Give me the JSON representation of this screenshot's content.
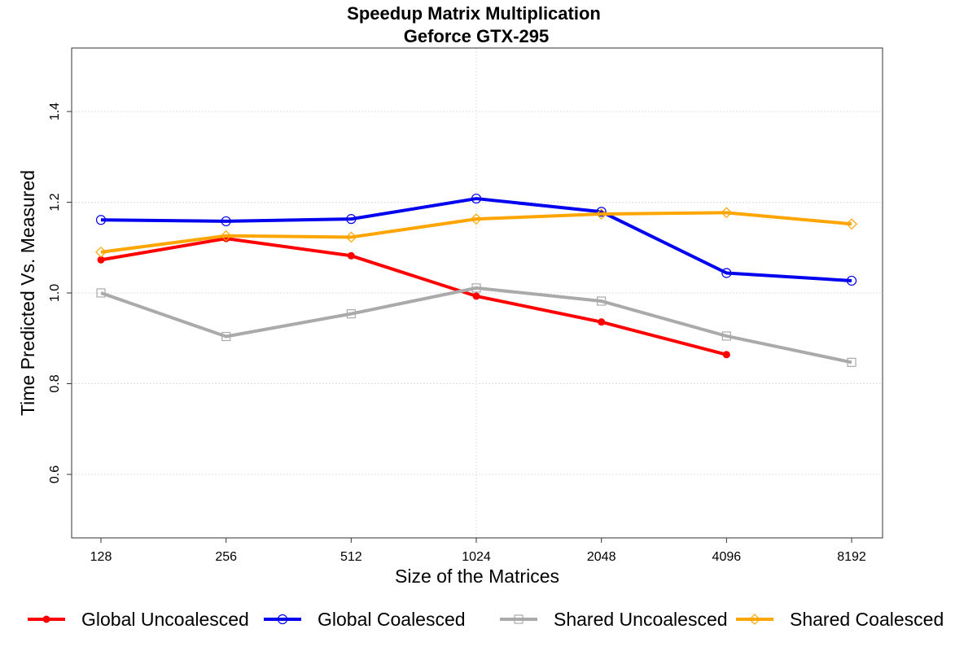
{
  "chart_data": {
    "type": "line",
    "title": "Speedup Matrix Multiplication",
    "subtitle": "Geforce GTX-295",
    "xlabel": "Size of the Matrices",
    "ylabel": "Time Predicted Vs. Measured",
    "categories": [
      "128",
      "256",
      "512",
      "1024",
      "2048",
      "4096",
      "8192"
    ],
    "yticks": [
      "0.6",
      "0.8",
      "1.0",
      "1.2",
      "1.4"
    ],
    "ylim": [
      0.46,
      1.54
    ],
    "grid": true,
    "legend_position": "bottom",
    "series": [
      {
        "name": "Global Uncoalesced",
        "color": "#ff0000",
        "marker": "filled-circle",
        "values": [
          1.073,
          1.12,
          1.082,
          0.993,
          0.936,
          0.864,
          null
        ]
      },
      {
        "name": "Global Coalesced",
        "color": "#0000ee",
        "marker": "open-circle",
        "values": [
          1.161,
          1.158,
          1.163,
          1.208,
          1.179,
          1.044,
          1.027
        ]
      },
      {
        "name": "Shared Uncoalesced",
        "color": "#aaaaaa",
        "marker": "open-square",
        "values": [
          1.0,
          0.904,
          0.954,
          1.011,
          0.982,
          0.905,
          0.847
        ]
      },
      {
        "name": "Shared Coalesced",
        "color": "#ffa500",
        "marker": "open-diamond",
        "values": [
          1.09,
          1.126,
          1.123,
          1.163,
          1.174,
          1.177,
          1.152
        ]
      }
    ]
  }
}
